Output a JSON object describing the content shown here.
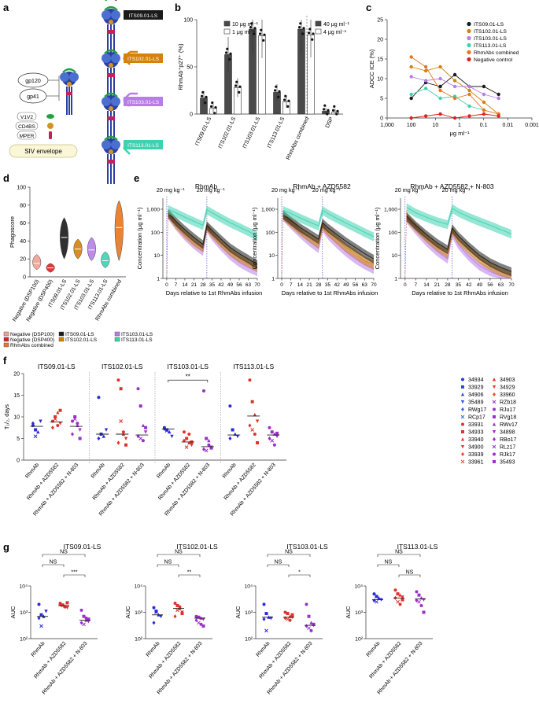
{
  "colors": {
    "its09": "#1a1a1a",
    "its102": "#d4820a",
    "its103": "#b67ee6",
    "its113": "#3fd1b0",
    "combined": "#e8771e",
    "neg": "#dd2222",
    "neg_light": "#f0a090",
    "rhmab": "#2a2ad8",
    "azd": "#e0322a",
    "n803": "#9b30c9",
    "bar_dark": "#4a4a4a",
    "bar_light": "#ffffff",
    "vline": "#3333cc"
  },
  "panel_labels": {
    "a": "a",
    "b": "b",
    "c": "c",
    "d": "d",
    "e": "e",
    "f": "f",
    "g": "g"
  },
  "panel_a": {
    "legend": [
      "V1V2",
      "CD4BS",
      "MPER"
    ],
    "bubbles": [
      "gp120",
      "gp41"
    ],
    "envelope": "SIV envelope",
    "antibodies": [
      "ITS09.01-LS",
      "ITS102.01-LS",
      "ITS103.01-LS",
      "ITS113.01-LS"
    ]
  },
  "chart_data": [
    {
      "id": "b",
      "type": "bar",
      "ylabel": "RhmAb⁺p27⁺ (%)",
      "ylim": [
        0,
        100
      ],
      "yticks": [
        "0",
        "50",
        "100"
      ],
      "categories": [
        "ITS09.01-LS",
        "ITS102.01-LS",
        "ITS103.01-LS",
        "ITS113.01-LS",
        "RhmAbs combined",
        "DSP"
      ],
      "series": [
        {
          "name": "10 μg ml⁻¹",
          "values": [
            17,
            63,
            90,
            23,
            null,
            null
          ]
        },
        {
          "name": "1 μg ml⁻¹",
          "values": [
            6,
            28,
            83,
            13,
            null,
            null
          ]
        },
        {
          "name": "40 μg ml⁻¹",
          "values": [
            null,
            null,
            null,
            null,
            90,
            3
          ]
        },
        {
          "name": "4 μg ml⁻¹",
          "values": [
            null,
            null,
            null,
            null,
            84,
            2
          ]
        }
      ]
    },
    {
      "id": "c",
      "type": "line",
      "ylabel": "ADCC ICE (%)",
      "xlabel": "μg ml⁻¹",
      "ylim": [
        0,
        25
      ],
      "yticks": [
        "0",
        "5",
        "10",
        "15",
        "20",
        "25"
      ],
      "xscale": "log-reversed",
      "xlim": [
        1000,
        0.001
      ],
      "xticks": [
        "1,000",
        "100",
        "10",
        "1",
        "0.1",
        "0.01",
        "0.001"
      ],
      "x": [
        100,
        25,
        6.25,
        1.56,
        0.39,
        0.098,
        0.024
      ],
      "series": [
        {
          "name": "ITS09.01-LS",
          "values": [
            5,
            9,
            8,
            11,
            8,
            8,
            6
          ]
        },
        {
          "name": "ITS102.01-LS",
          "values": [
            13,
            12,
            13,
            9.5,
            7,
            4,
            1
          ]
        },
        {
          "name": "ITS103.01-LS",
          "values": [
            10.5,
            9.5,
            10,
            8,
            8,
            6,
            5
          ]
        },
        {
          "name": "ITS113.01-LS",
          "values": [
            6,
            7.5,
            5,
            5.5,
            3,
            2,
            1
          ]
        },
        {
          "name": "RhmAbs combined",
          "values": [
            15.5,
            13,
            7,
            5,
            6,
            2,
            1
          ]
        },
        {
          "name": "Negative control",
          "values": [
            0,
            0.5,
            1,
            0,
            0.5,
            1,
            0.5
          ]
        }
      ]
    },
    {
      "id": "d",
      "type": "violin",
      "ylabel": "Phagoscore",
      "ylim": [
        0,
        100
      ],
      "yticks": [
        "0",
        "20",
        "40",
        "60",
        "80",
        "100"
      ],
      "categories": [
        "Negative (DSP100)",
        "Negative (DSP400)",
        "ITS09.01-LS",
        "ITS102.01-LS",
        "ITS103.01-LS",
        "ITS113.01-LS",
        "RhmAbs combined"
      ],
      "medians": [
        15,
        10,
        44,
        31,
        30,
        18,
        55
      ],
      "ranges": [
        [
          8,
          25
        ],
        [
          5,
          15
        ],
        [
          20,
          66
        ],
        [
          20,
          42
        ],
        [
          18,
          44
        ],
        [
          10,
          28
        ],
        [
          18,
          85
        ]
      ],
      "legend": [
        "Negative (DSP100)",
        "Negative (DSP400)",
        "RhmAbs combined",
        "ITS09.01-LS",
        "ITS102.01-LS",
        "ITS103.01-LS",
        "ITS113.01-LS"
      ]
    },
    {
      "id": "e",
      "type": "area",
      "ylabel": "Concentration (μg ml⁻¹)",
      "xlabel": "Days relative to 1st RhmAbs infusion",
      "dose_label": "20 mg kg⁻¹",
      "xticks": [
        "0",
        "7",
        "14",
        "21",
        "28",
        "35",
        "42",
        "49",
        "56",
        "63",
        "70"
      ],
      "yticks": [
        "1",
        "10",
        "100",
        "1,000"
      ],
      "ylim": [
        1,
        3000
      ],
      "xlim": [
        -3,
        70
      ],
      "titles": [
        "RhmAb",
        "RhmAb + AZD5582",
        "RhmAb + AZD5582 + N-803"
      ],
      "days": [
        1,
        7,
        14,
        21,
        28,
        31,
        35,
        42,
        49,
        56,
        63,
        70
      ],
      "groups": [
        {
          "title": "RhmAb",
          "series": [
            {
              "name": "ITS113.01-LS",
              "values": [
                1000,
                700,
                450,
                300,
                200,
                950,
                700,
                420,
                260,
                170,
                110,
                70
              ]
            },
            {
              "name": "ITS09.01-LS",
              "values": [
                700,
                300,
                130,
                60,
                30,
                200,
                120,
                50,
                22,
                12,
                7,
                4
              ]
            },
            {
              "name": "ITS102.01-LS",
              "values": [
                650,
                230,
                90,
                40,
                22,
                180,
                90,
                35,
                15,
                8,
                5,
                3
              ]
            },
            {
              "name": "ITS103.01-LS",
              "values": [
                600,
                200,
                70,
                30,
                15,
                160,
                70,
                25,
                10,
                5,
                3,
                2
              ]
            }
          ]
        },
        {
          "title": "RhmAb + AZD5582",
          "series": [
            {
              "name": "ITS113.01-LS",
              "values": [
                900,
                650,
                420,
                280,
                190,
                900,
                650,
                400,
                250,
                160,
                100,
                65
              ]
            },
            {
              "name": "ITS09.01-LS",
              "values": [
                600,
                320,
                160,
                90,
                50,
                260,
                160,
                80,
                40,
                22,
                12,
                7
              ]
            },
            {
              "name": "ITS102.01-LS",
              "values": [
                550,
                260,
                120,
                60,
                32,
                200,
                110,
                50,
                22,
                12,
                6,
                4
              ]
            },
            {
              "name": "ITS103.01-LS",
              "values": [
                500,
                220,
                90,
                40,
                20,
                170,
                80,
                32,
                14,
                7,
                4,
                2.5
              ]
            }
          ]
        },
        {
          "title": "RhmAb + AZD5582 + N-803",
          "series": [
            {
              "name": "ITS113.01-LS",
              "values": [
                1200,
                700,
                450,
                300,
                220,
                1100,
                750,
                460,
                300,
                200,
                130,
                85
              ]
            },
            {
              "name": "ITS09.01-LS",
              "values": [
                500,
                200,
                80,
                35,
                18,
                150,
                70,
                25,
                10,
                5,
                3,
                2
              ]
            },
            {
              "name": "ITS102.01-LS",
              "values": [
                450,
                170,
                60,
                25,
                12,
                120,
                50,
                18,
                7,
                3.5,
                2,
                1.3
              ]
            },
            {
              "name": "ITS103.01-LS",
              "values": [
                400,
                130,
                40,
                15,
                7,
                90,
                30,
                9,
                3.5,
                2,
                1.3,
                1
              ]
            }
          ]
        }
      ]
    },
    {
      "id": "f",
      "type": "scatter",
      "ylabel": "T₁/₂, days",
      "ylim": [
        0,
        20
      ],
      "yticks": [
        "0",
        "5",
        "10",
        "15",
        "20"
      ],
      "group_labels": [
        "RhmAb",
        "RhmAb + AZD5582",
        "RhmAb + AZD5582 + N-803"
      ],
      "significance": "**",
      "panels": [
        {
          "title": "ITS09.01-LS",
          "medians": [
            7.8,
            8.8,
            7.8
          ],
          "points": [
            [
              8,
              7,
              6.5,
              9,
              8.5,
              5.5
            ],
            [
              9,
              10,
              11,
              8.5,
              7.5,
              9.5,
              8,
              11.5
            ],
            [
              9,
              10,
              8,
              7,
              6,
              9.5,
              8.5,
              5
            ]
          ]
        },
        {
          "title": "ITS102.01-LS",
          "medians": [
            6,
            6,
            5.8
          ],
          "points": [
            [
              14.5,
              6,
              5.5,
              7,
              5
            ],
            [
              18.5,
              16.5,
              6,
              5,
              4,
              9,
              6.5,
              3.5
            ],
            [
              16.5,
              12.5,
              8,
              6.5,
              5.5,
              5,
              4.5,
              7.5
            ]
          ]
        },
        {
          "title": "ITS103.01-LS",
          "medians": [
            7.2,
            4.2,
            3.1
          ],
          "points": [
            [
              7.5,
              7,
              6.5,
              5.5,
              7.2,
              6.8
            ],
            [
              6.5,
              5,
              4,
              3.5,
              4.5,
              3,
              6,
              4.2
            ],
            [
              16,
              5,
              4.5,
              3,
              2.5,
              2.2,
              3.5,
              2.8
            ]
          ]
        },
        {
          "title": "ITS113.01-LS",
          "medians": [
            5.8,
            10.2,
            5.8
          ],
          "points": [
            [
              12.5,
              7,
              6,
              5.5,
              5
            ],
            [
              18.5,
              13.5,
              10.5,
              9,
              8,
              7,
              6,
              4
            ],
            [
              7.5,
              6.5,
              6,
              5.5,
              5,
              4.5,
              3.5,
              6.2
            ]
          ]
        }
      ],
      "legend_ids_col1": [
        "34934",
        "33929",
        "34906",
        "35489",
        "RWg17",
        "RCp17",
        "33931",
        "34933",
        "33940",
        "34900",
        "33939",
        "33961"
      ],
      "legend_ids_col2": [
        "34903",
        "34929",
        "33960",
        "RZb18",
        "RJu17",
        "RVg18",
        "RWv17",
        "34898",
        "RBo17",
        "RLz17",
        "RJk17",
        "35493"
      ]
    },
    {
      "id": "g",
      "type": "scatter",
      "ylabel": "AUC",
      "yscale": "log",
      "yticks": [
        "10²",
        "10³",
        "10⁴"
      ],
      "group_labels": [
        "RhmAb",
        "RhmAb + AZD5582",
        "RhmAb + AZD5582 + N-803"
      ],
      "panels": [
        {
          "title": "ITS09.01-LS",
          "sig": [
            "NS",
            "NS",
            "***"
          ],
          "medians": [
            700,
            1800,
            500
          ],
          "points": [
            [
              2000,
              800,
              700,
              1100,
              600,
              300
            ],
            [
              2200,
              1900,
              1700,
              1500,
              2000,
              1800,
              1600,
              2300
            ],
            [
              1200,
              700,
              500,
              450,
              400,
              350,
              600,
              550
            ]
          ]
        },
        {
          "title": "ITS102.01-LS",
          "sig": [
            "NS",
            "NS",
            "**"
          ],
          "medians": [
            800,
            1400,
            600
          ],
          "points": [
            [
              1500,
              1100,
              800,
              700,
              400,
              1000
            ],
            [
              2200,
              1800,
              1400,
              1000,
              700,
              1200,
              1600,
              900
            ],
            [
              700,
              650,
              600,
              550,
              500,
              400,
              350,
              300
            ]
          ]
        },
        {
          "title": "ITS103.01-LS",
          "sig": [
            "NS",
            "NS",
            "*"
          ],
          "medians": [
            650,
            650,
            320
          ],
          "points": [
            [
              2000,
              900,
              650,
              600,
              550,
              200
            ],
            [
              1000,
              900,
              700,
              650,
              600,
              550,
              500,
              800
            ],
            [
              2000,
              700,
              400,
              320,
              300,
              250,
              200,
              350
            ]
          ]
        },
        {
          "title": "ITS113.01-LS",
          "sig": [
            "NS",
            "NS",
            "NS"
          ],
          "medians": [
            3000,
            3500,
            3200
          ],
          "points": [
            [
              5000,
              4000,
              3500,
              3000,
              2800,
              2500
            ],
            [
              7000,
              5000,
              4500,
              3800,
              3500,
              2500,
              2000,
              3000
            ],
            [
              6000,
              4500,
              3500,
              3000,
              2800,
              2500,
              1800,
              1000
            ]
          ]
        }
      ]
    }
  ]
}
